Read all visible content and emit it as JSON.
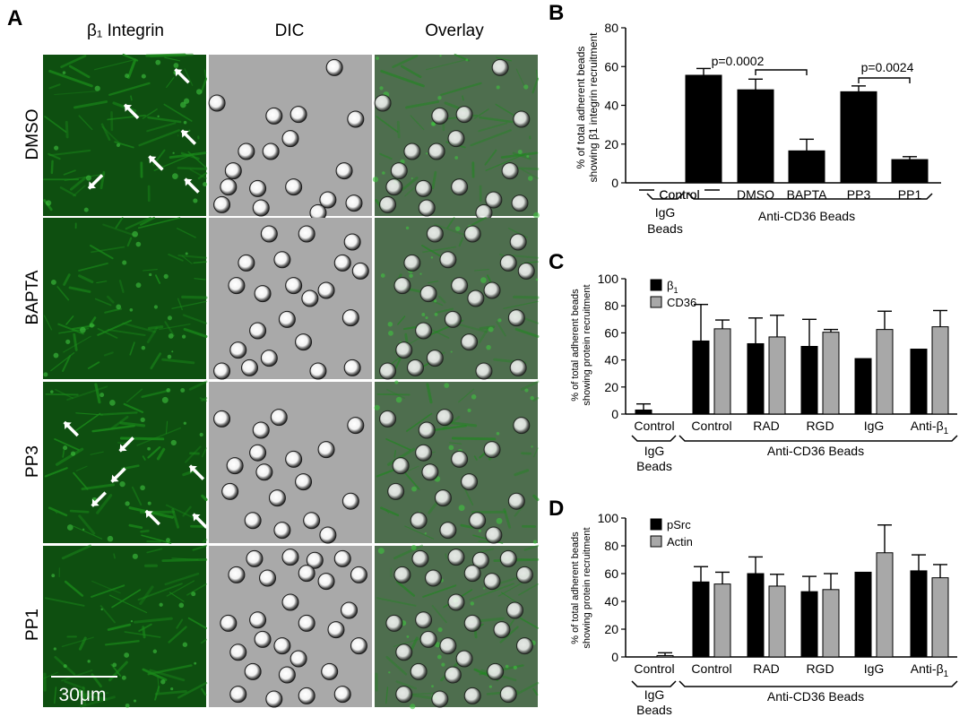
{
  "panel_a": {
    "label": "A",
    "column_headers": [
      "β₁ Integrin",
      "DIC",
      "Overlay"
    ],
    "row_labels": [
      "DMSO",
      "BAPTA",
      "PP3",
      "PP1"
    ],
    "scale_bar": "30μm",
    "colors": {
      "fluorescence": "#1a8a1a",
      "dic": "#a9a9a9",
      "overlay": "#4e6e4e"
    },
    "icons": [
      "arrow-icon"
    ]
  },
  "panel_b": {
    "label": "B",
    "ylabel_line1": "% of total adherent beads",
    "ylabel_line2": "showing β1 integrin recruitment",
    "pvalues": [
      "p=0.0002",
      "p=0.0024"
    ],
    "group_igg": "IgG Beads",
    "group_igg_line1": "IgG",
    "group_igg_line2": "Beads",
    "group_cd36": "Anti-CD36 Beads"
  },
  "panel_c": {
    "label": "C",
    "ylabel_line1": "% of total adherent beads",
    "ylabel_line2": "showing protein recruitment",
    "group_igg_line1": "IgG",
    "group_igg_line2": "Beads",
    "group_cd36": "Anti-CD36 Beads"
  },
  "panel_d": {
    "label": "D",
    "ylabel_line1": "% of total adherent beads",
    "ylabel_line2": "showing protein recruitment",
    "group_igg_line1": "IgG",
    "group_igg_line2": "Beads",
    "group_cd36": "Anti-CD36 Beads"
  },
  "chart_data": [
    {
      "type": "bar",
      "panel": "B",
      "categories": [
        "Control",
        "Control",
        "DMSO",
        "BAPTA",
        "PP3",
        "PP1"
      ],
      "series": [
        {
          "values": [
            0,
            55.5,
            48,
            16.5,
            47,
            12
          ],
          "errors": [
            0,
            3.5,
            5.5,
            6,
            3,
            1.5
          ]
        }
      ],
      "ylim": [
        0,
        80
      ],
      "yticks": [
        0,
        20,
        40,
        60,
        80
      ],
      "colors": [
        "#000000"
      ]
    },
    {
      "type": "bar",
      "panel": "C",
      "categories": [
        "Control",
        "Control",
        "RAD",
        "RGD",
        "IgG",
        "Anti-β1"
      ],
      "series": [
        {
          "name": "β1",
          "values": [
            3,
            54,
            52,
            50,
            41,
            48
          ],
          "errors": [
            4.5,
            27,
            19,
            20,
            0,
            0
          ]
        },
        {
          "name": "CD36",
          "values": [
            0,
            63,
            57,
            60.5,
            62.5,
            64.5
          ],
          "errors": [
            0,
            6.5,
            16,
            2,
            13.5,
            12
          ]
        }
      ],
      "ylim": [
        0,
        100
      ],
      "yticks": [
        0,
        20,
        40,
        60,
        80,
        100
      ],
      "legend": "top-left",
      "colors": [
        "#000000",
        "#a8a8a8"
      ]
    },
    {
      "type": "bar",
      "panel": "D",
      "categories": [
        "Control",
        "Control",
        "RAD",
        "RGD",
        "IgG",
        "Anti-β1"
      ],
      "series": [
        {
          "name": "pSrc",
          "values": [
            0,
            54,
            60,
            47,
            61,
            62
          ],
          "errors": [
            0,
            11,
            12,
            11,
            0,
            11.5
          ]
        },
        {
          "name": "Actin",
          "values": [
            1,
            52.5,
            51,
            48.5,
            75,
            57
          ],
          "errors": [
            2,
            8.5,
            8.5,
            11.5,
            20,
            9.5
          ]
        }
      ],
      "ylim": [
        0,
        100
      ],
      "yticks": [
        0,
        20,
        40,
        60,
        80,
        100
      ],
      "legend": "top-left",
      "colors": [
        "#000000",
        "#a8a8a8"
      ]
    }
  ]
}
